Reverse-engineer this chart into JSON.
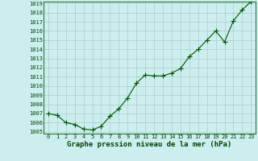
{
  "x": [
    0,
    1,
    2,
    3,
    4,
    5,
    6,
    7,
    8,
    9,
    10,
    11,
    12,
    13,
    14,
    15,
    16,
    17,
    18,
    19,
    20,
    21,
    22,
    23
  ],
  "y": [
    1007.0,
    1006.8,
    1006.0,
    1005.8,
    1005.3,
    1005.2,
    1005.6,
    1006.7,
    1007.5,
    1008.7,
    1010.3,
    1011.2,
    1011.1,
    1011.1,
    1011.4,
    1011.9,
    1013.2,
    1014.0,
    1015.0,
    1016.0,
    1014.8,
    1017.1,
    1018.3,
    1019.2
  ],
  "ylim": [
    1005,
    1019
  ],
  "yticks": [
    1005,
    1006,
    1007,
    1008,
    1009,
    1010,
    1011,
    1012,
    1013,
    1014,
    1015,
    1016,
    1017,
    1018,
    1019
  ],
  "xlim": [
    -0.5,
    23.5
  ],
  "xticks": [
    0,
    1,
    2,
    3,
    4,
    5,
    6,
    7,
    8,
    9,
    10,
    11,
    12,
    13,
    14,
    15,
    16,
    17,
    18,
    19,
    20,
    21,
    22,
    23
  ],
  "line_color": "#005500",
  "marker": "+",
  "bg_color": "#cceeee",
  "grid_color": "#aacccc",
  "xlabel": "Graphe pression niveau de la mer (hPa)",
  "xlabel_color": "#004400",
  "tick_label_color": "#004400",
  "tick_fontsize": 5.0,
  "xlabel_fontsize": 6.5,
  "linewidth": 0.8,
  "markersize": 4,
  "marker_linewidth": 0.8
}
